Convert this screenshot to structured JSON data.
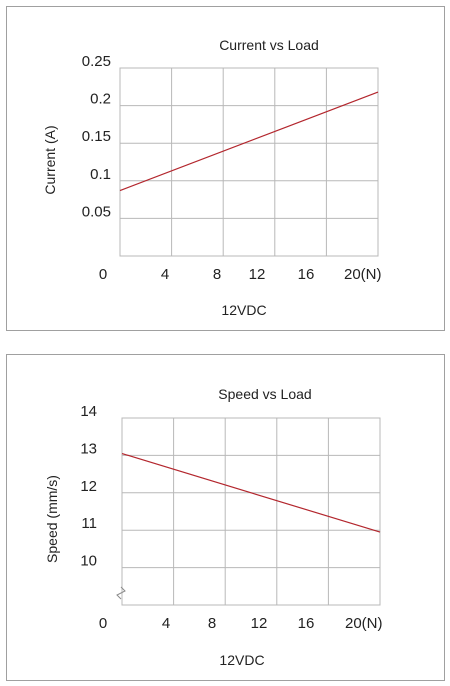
{
  "chart_data": [
    {
      "type": "line",
      "title": "Current vs Load",
      "xlabel": "12VDC",
      "ylabel": "Current (A)",
      "x_tick_labels": [
        "0",
        "4",
        "8",
        "12",
        "16",
        "20(N)"
      ],
      "y_tick_labels": [
        "0.05",
        "0.1",
        "0.15",
        "0.2",
        "0.25"
      ],
      "y_ticks": [
        0.05,
        0.1,
        0.15,
        0.2,
        0.25
      ],
      "xlim": [
        0,
        20
      ],
      "ylim": [
        0,
        0.25
      ],
      "grid": true,
      "series": [
        {
          "x": [
            0,
            20
          ],
          "y": [
            0.087,
            0.218
          ],
          "color": "#b3262d"
        }
      ]
    },
    {
      "type": "line",
      "title": "Speed vs Load",
      "xlabel": "12VDC",
      "ylabel": "Speed (mm/s)",
      "x_tick_labels": [
        "0",
        "4",
        "8",
        "12",
        "16",
        "20(N)"
      ],
      "y_tick_labels": [
        "10",
        "11",
        "12",
        "13",
        "14"
      ],
      "y_ticks": [
        10,
        11,
        12,
        13,
        14
      ],
      "xlim": [
        0,
        20
      ],
      "ylim": [
        9,
        14
      ],
      "axis_break": "y",
      "grid": true,
      "series": [
        {
          "x": [
            0,
            20
          ],
          "y": [
            13.05,
            10.95
          ],
          "color": "#b3262d"
        }
      ]
    }
  ]
}
